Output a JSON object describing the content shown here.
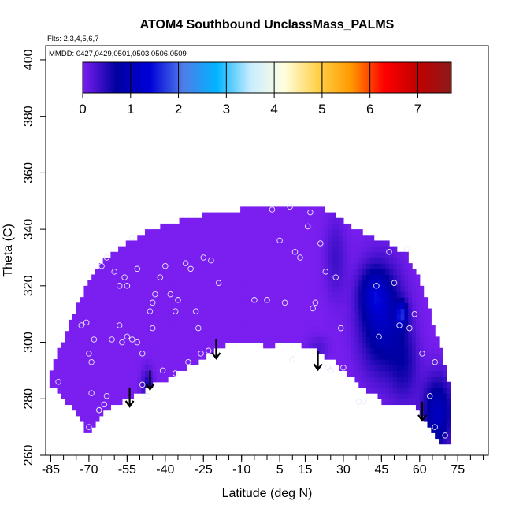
{
  "chart_data": {
    "type": "heatmap",
    "title": "ATOM4 Southbound UnclassMass_PALMS",
    "subtitle_flights": "Flts: 2,3,4,5,6,7",
    "subtitle_dates": "MMDD: 0427,0429,0501,0503,0506,0509",
    "xlabel": "Latitude (deg N)",
    "ylabel": "Theta (C)",
    "xlim": [
      -87,
      87
    ],
    "ylim": [
      260,
      405
    ],
    "x_ticks": [
      -85,
      -70,
      -55,
      -40,
      -25,
      -10,
      5,
      15,
      30,
      45,
      60,
      75
    ],
    "x_tick_labels": [
      "-85",
      "-70",
      "-55",
      "-40",
      "-25",
      "-10",
      "5",
      "15",
      "30",
      "45",
      "60",
      "75"
    ],
    "x_minor_step": 5,
    "y_ticks": [
      260,
      280,
      300,
      320,
      340,
      360,
      380,
      400
    ],
    "y_tick_labels": [
      "260",
      "280",
      "300",
      "320",
      "340",
      "360",
      "380",
      "400"
    ],
    "colorbar": {
      "range": [
        0,
        7.7
      ],
      "ticks": [
        0,
        1,
        2,
        3,
        4,
        5,
        6,
        7
      ],
      "tick_labels": [
        "0",
        "1",
        "2",
        "3",
        "4",
        "5",
        "6",
        "7"
      ],
      "stops": [
        "#7a1ff0",
        "#0000a0",
        "#0000d8",
        "#4f7ce8",
        "#00b4ff",
        "#c8ecff",
        "#ffffe0",
        "#ffd24a",
        "#ff9a00",
        "#ff0000",
        "#c00000",
        "#8e1a1a"
      ]
    },
    "field": {
      "background_value": 0.0,
      "upper_boundary": [
        [
          -86,
          288
        ],
        [
          -80,
          301
        ],
        [
          -75,
          312
        ],
        [
          -70,
          322
        ],
        [
          -65,
          329
        ],
        [
          -60,
          332
        ],
        [
          -55,
          335
        ],
        [
          -50,
          338
        ],
        [
          -45,
          340
        ],
        [
          -40,
          342
        ],
        [
          -35,
          343
        ],
        [
          -30,
          344
        ],
        [
          -25,
          345
        ],
        [
          -20,
          346
        ],
        [
          -15,
          346
        ],
        [
          -10,
          347
        ],
        [
          -5,
          348
        ],
        [
          0,
          348
        ],
        [
          5,
          348
        ],
        [
          10,
          348
        ],
        [
          15,
          348
        ],
        [
          20,
          348
        ],
        [
          25,
          346
        ],
        [
          30,
          343
        ],
        [
          35,
          340
        ],
        [
          40,
          338
        ],
        [
          45,
          336
        ],
        [
          50,
          334
        ],
        [
          55,
          331
        ],
        [
          60,
          322
        ],
        [
          63,
          314
        ],
        [
          66,
          304
        ],
        [
          69,
          296
        ],
        [
          71,
          288
        ],
        [
          72,
          278
        ],
        [
          72,
          265
        ]
      ],
      "lower_boundary": [
        [
          72,
          265
        ],
        [
          68,
          265
        ],
        [
          63,
          272
        ],
        [
          58,
          278
        ],
        [
          52,
          278
        ],
        [
          47,
          278
        ],
        [
          43,
          281
        ],
        [
          38,
          284
        ],
        [
          33,
          288
        ],
        [
          28,
          292
        ],
        [
          23,
          295
        ],
        [
          18,
          298
        ],
        [
          13,
          299
        ],
        [
          8,
          300
        ],
        [
          3,
          299
        ],
        [
          -2,
          299
        ],
        [
          -7,
          300
        ],
        [
          -12,
          300
        ],
        [
          -17,
          299
        ],
        [
          -22,
          296
        ],
        [
          -27,
          293
        ],
        [
          -32,
          291
        ],
        [
          -37,
          288
        ],
        [
          -42,
          286
        ],
        [
          -47,
          284
        ],
        [
          -52,
          281
        ],
        [
          -57,
          279
        ],
        [
          -62,
          277
        ],
        [
          -66,
          274
        ],
        [
          -68,
          270
        ],
        [
          -70,
          267
        ],
        [
          -72,
          270
        ],
        [
          -75,
          275
        ],
        [
          -79,
          279
        ],
        [
          -83,
          283
        ],
        [
          -86,
          286
        ]
      ],
      "enhancements": [
        {
          "lat": 45,
          "theta": 308,
          "value": 1.05,
          "sigma_lat": 6.0,
          "sigma_theta": 13
        },
        {
          "lat": 42,
          "theta": 318,
          "value": 0.7,
          "sigma_lat": 4.0,
          "sigma_theta": 6
        },
        {
          "lat": 67,
          "theta": 275,
          "value": 1.1,
          "sigma_lat": 4.0,
          "sigma_theta": 9
        },
        {
          "lat": 54,
          "theta": 292,
          "value": 0.5,
          "sigma_lat": 4.0,
          "sigma_theta": 10
        },
        {
          "lat": 27,
          "theta": 330,
          "value": 0.35,
          "sigma_lat": 3.0,
          "sigma_theta": 10
        },
        {
          "lat": -47,
          "theta": 285,
          "value": 0.55,
          "sigma_lat": 1.6,
          "sigma_theta": 4
        },
        {
          "lat": 20,
          "theta": 298,
          "value": 0.25,
          "sigma_lat": 3.0,
          "sigma_theta": 3
        },
        {
          "lat": 53,
          "theta": 310,
          "value": 1.2,
          "sigma_lat": 1.5,
          "sigma_theta": 3
        }
      ]
    },
    "samples": [
      [
        -82,
        286
      ],
      [
        -73,
        306
      ],
      [
        -71,
        307
      ],
      [
        -70,
        296
      ],
      [
        -69,
        293
      ],
      [
        -68,
        301
      ],
      [
        -69,
        282
      ],
      [
        -66,
        276
      ],
      [
        -64,
        278
      ],
      [
        -63,
        281
      ],
      [
        -61,
        301
      ],
      [
        -58,
        306
      ],
      [
        -57,
        300
      ],
      [
        -55,
        302
      ],
      [
        -53,
        301
      ],
      [
        -51,
        300
      ],
      [
        -49,
        296
      ],
      [
        -49,
        285
      ],
      [
        -47,
        281
      ],
      [
        -45,
        305
      ],
      [
        -46,
        311
      ],
      [
        -45,
        314
      ],
      [
        -44,
        317
      ],
      [
        -42,
        323
      ],
      [
        -40,
        327
      ],
      [
        -38,
        317
      ],
      [
        -36,
        311
      ],
      [
        -35,
        315
      ],
      [
        -32,
        328
      ],
      [
        -30,
        326
      ],
      [
        -28,
        311
      ],
      [
        -27,
        305
      ],
      [
        -25,
        330
      ],
      [
        -22,
        329
      ],
      [
        -19,
        321
      ],
      [
        -60,
        325
      ],
      [
        -58,
        320
      ],
      [
        -56,
        323
      ],
      [
        -55,
        320
      ],
      [
        -53,
        337
      ],
      [
        -51,
        326
      ],
      [
        -63,
        330
      ],
      [
        -65,
        327
      ],
      [
        -41,
        290
      ],
      [
        -36,
        289
      ],
      [
        -31,
        293
      ],
      [
        -26,
        296
      ],
      [
        -23,
        297
      ],
      [
        0,
        315
      ],
      [
        2,
        347
      ],
      [
        5,
        336
      ],
      [
        7,
        314
      ],
      [
        9,
        348
      ],
      [
        11,
        332
      ],
      [
        13,
        330
      ],
      [
        16,
        341
      ],
      [
        17,
        346
      ],
      [
        18,
        312
      ],
      [
        19,
        314
      ],
      [
        21,
        335
      ],
      [
        23,
        325
      ],
      [
        27,
        323
      ],
      [
        29,
        305
      ],
      [
        25,
        290
      ],
      [
        24,
        291
      ],
      [
        30,
        291
      ],
      [
        36,
        279
      ],
      [
        38,
        279
      ],
      [
        43,
        320
      ],
      [
        44,
        302
      ],
      [
        48,
        332
      ],
      [
        50,
        321
      ],
      [
        52,
        306
      ],
      [
        55,
        333
      ],
      [
        56,
        305
      ],
      [
        58,
        310
      ],
      [
        61,
        296
      ],
      [
        66,
        293
      ],
      [
        64,
        281
      ],
      [
        66,
        270
      ],
      [
        70,
        267
      ],
      [
        -5,
        315
      ],
      [
        10,
        294
      ],
      [
        -70,
        270
      ],
      [
        -66,
        276
      ]
    ],
    "arrows": [
      {
        "lat": -54,
        "theta": 284
      },
      {
        "lat": -46,
        "theta": 290
      },
      {
        "lat": -20,
        "theta": 301
      },
      {
        "lat": 20,
        "theta": 297
      },
      {
        "lat": 61,
        "theta": 279
      }
    ]
  }
}
